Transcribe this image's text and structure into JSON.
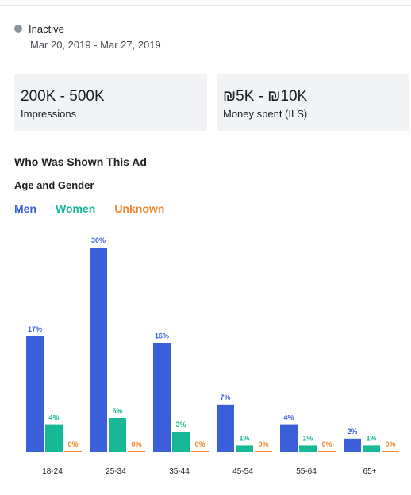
{
  "status": {
    "label": "Inactive",
    "dot_color": "#8d949e"
  },
  "date_range": "Mar 20, 2019 - Mar 27, 2019",
  "stats": [
    {
      "value": "200K - 500K",
      "label": "Impressions"
    },
    {
      "value": "₪5K - ₪10K",
      "label": "Money spent (ILS)"
    }
  ],
  "section_title": "Who Was Shown This Ad",
  "sub_title": "Age and Gender",
  "colors": {
    "men": "#3b5fd9",
    "women": "#17b897",
    "unknown": "#f0862e"
  },
  "chart_data": {
    "type": "bar",
    "categories": [
      "18-24",
      "25-34",
      "35-44",
      "45-54",
      "55-64",
      "65+"
    ],
    "series": [
      {
        "name": "Men",
        "values": [
          17,
          30,
          16,
          7,
          4,
          2
        ]
      },
      {
        "name": "Women",
        "values": [
          4,
          5,
          3,
          1,
          1,
          1
        ]
      },
      {
        "name": "Unknown",
        "values": [
          0,
          0,
          0,
          0,
          0,
          0
        ]
      }
    ],
    "value_suffix": "%",
    "ylim": [
      0,
      30
    ],
    "grid": false,
    "legend": "top-left"
  }
}
